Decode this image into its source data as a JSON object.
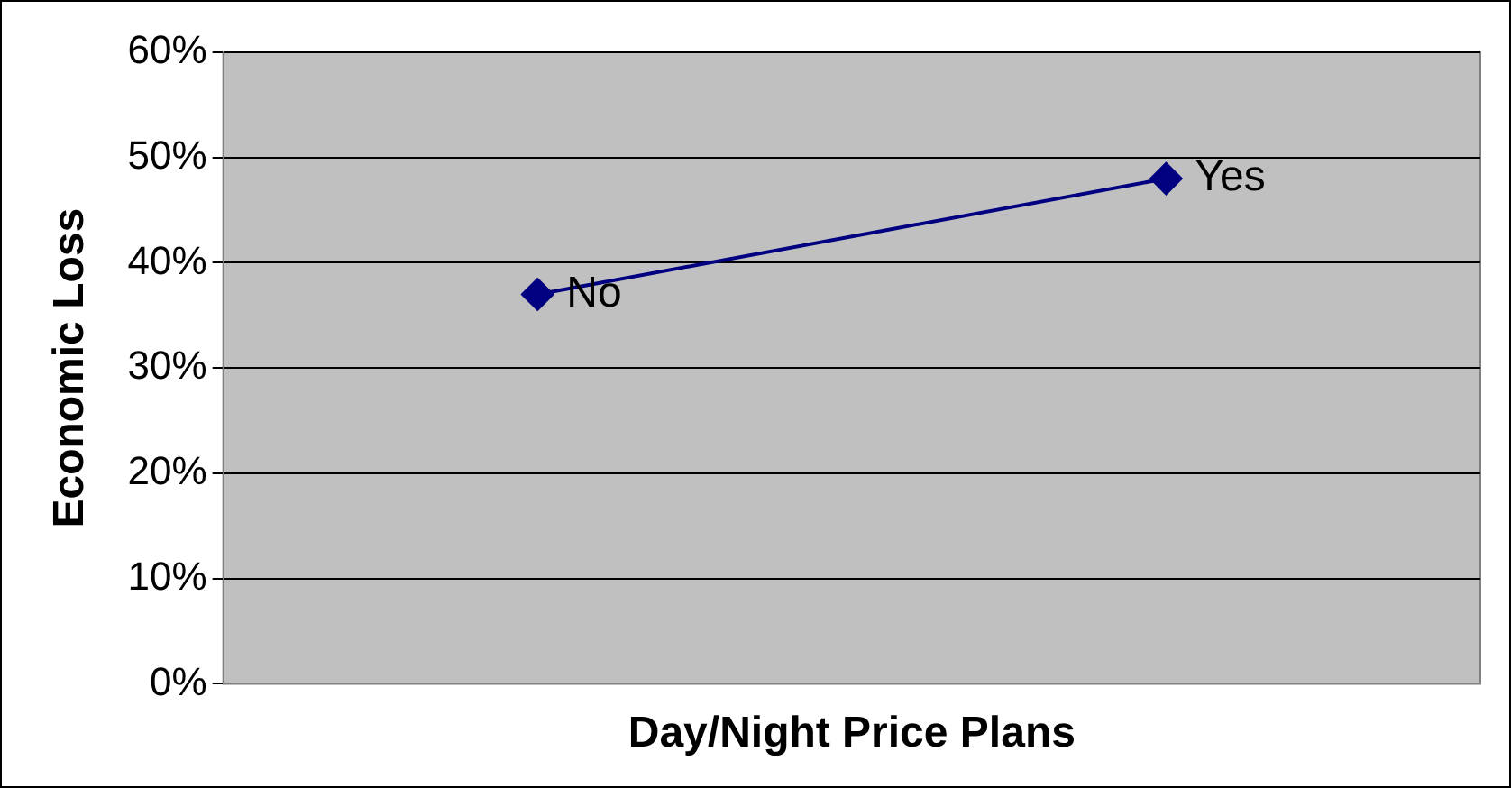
{
  "chart_data": {
    "type": "line",
    "xlabel": "Day/Night Price Plans",
    "ylabel": "Economic Loss",
    "categories": [
      null,
      null
    ],
    "series": [
      {
        "color": "#000080",
        "values": [
          37,
          48
        ],
        "value_labels": [
          "No",
          "Yes"
        ]
      }
    ],
    "ylim": [
      0,
      60
    ],
    "yticks": [
      {
        "value": 0,
        "label": "0%"
      },
      {
        "value": 10,
        "label": "10%"
      },
      {
        "value": 20,
        "label": "20%"
      },
      {
        "value": 30,
        "label": "30%"
      },
      {
        "value": 40,
        "label": "40%"
      },
      {
        "value": 50,
        "label": "50%"
      },
      {
        "value": 60,
        "label": "60%"
      }
    ],
    "grid": "y",
    "legend": false,
    "tick_labels": "y",
    "marker": "diamond",
    "line_style": "solid"
  }
}
